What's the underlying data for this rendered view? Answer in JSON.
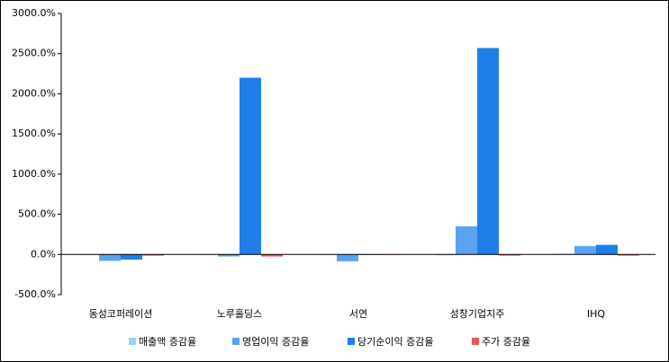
{
  "chart_data": {
    "type": "bar",
    "categories": [
      "동성코퍼레이션",
      "노루홀딩스",
      "서연",
      "성창기업지주",
      "IHQ"
    ],
    "series": [
      {
        "name": "매출액 증감율",
        "color": "#99ccff",
        "values": [
          -3,
          -2,
          -5,
          -10,
          10
        ]
      },
      {
        "name": "영업이익 증감율",
        "color": "#5ba3ef",
        "values": [
          -80,
          -25,
          -85,
          350,
          105
        ]
      },
      {
        "name": "당기순이익 증감율",
        "color": "#1f7ee8",
        "values": [
          -65,
          2200,
          0,
          2570,
          120
        ]
      },
      {
        "name": "주가 증감율",
        "color": "#ee5555",
        "values": [
          -15,
          -25,
          -5,
          -15,
          -15
        ]
      }
    ],
    "ylim": [
      -500,
      3000
    ],
    "yticks": [
      {
        "value": -500,
        "label": "-500.0%"
      },
      {
        "value": 0,
        "label": "0.0%"
      },
      {
        "value": 500,
        "label": "500.0%"
      },
      {
        "value": 1000,
        "label": "1000.0%"
      },
      {
        "value": 1500,
        "label": "1500.0%"
      },
      {
        "value": 2000,
        "label": "2000.0%"
      },
      {
        "value": 2500,
        "label": "2500.0%"
      },
      {
        "value": 3000,
        "label": "3000.0%"
      }
    ],
    "grid": false,
    "legend": "bottom"
  }
}
